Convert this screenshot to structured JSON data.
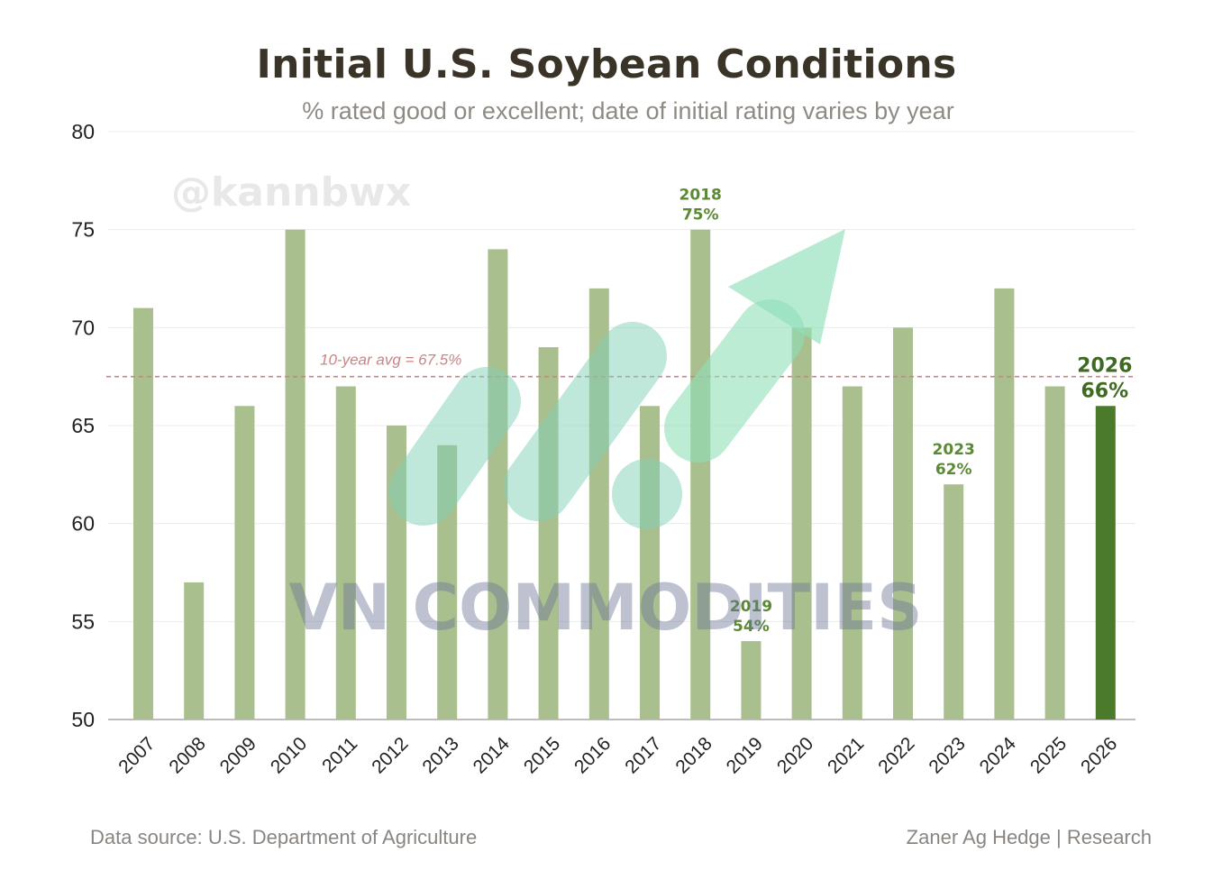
{
  "title": "Initial U.S. Soybean Conditions",
  "subtitle": "% rated good or excellent; date of initial rating varies by year",
  "footer": {
    "source": "Data source: U.S. Department of Agriculture",
    "credit": "Zaner Ag Hedge | Research"
  },
  "watermarks": {
    "handle": "@kannbwx",
    "brand": "VN COMMODITIES"
  },
  "colors": {
    "bar": "#aabf8e",
    "highlight_bar": "#4a7a2a",
    "annotation": "#5a8a34",
    "avg_line": "#c98585"
  },
  "chart_data": {
    "type": "bar",
    "categories": [
      "2007",
      "2008",
      "2009",
      "2010",
      "2011",
      "2012",
      "2013",
      "2014",
      "2015",
      "2016",
      "2017",
      "2018",
      "2019",
      "2020",
      "2021",
      "2022",
      "2023",
      "2024",
      "2025",
      "2026"
    ],
    "values": [
      71,
      57,
      66,
      75,
      67,
      65,
      64,
      74,
      69,
      72,
      66,
      75,
      54,
      70,
      67,
      70,
      62,
      72,
      67,
      66
    ],
    "highlight": "2026",
    "ylim": [
      50,
      80
    ],
    "yticks": [
      50,
      55,
      60,
      65,
      70,
      75,
      80
    ],
    "grid": true,
    "title": "Initial U.S. Soybean Conditions",
    "subtitle": "% rated good or excellent; date of initial rating varies by year",
    "reference_line": {
      "value": 67.5,
      "label": "10-year avg = 67.5%"
    },
    "annotations": [
      {
        "category": "2018",
        "year": "2018",
        "value": "75%"
      },
      {
        "category": "2019",
        "year": "2019",
        "value": "54%"
      },
      {
        "category": "2023",
        "year": "2023",
        "value": "62%"
      },
      {
        "category": "2026",
        "year": "2026",
        "value": "66%"
      }
    ]
  }
}
